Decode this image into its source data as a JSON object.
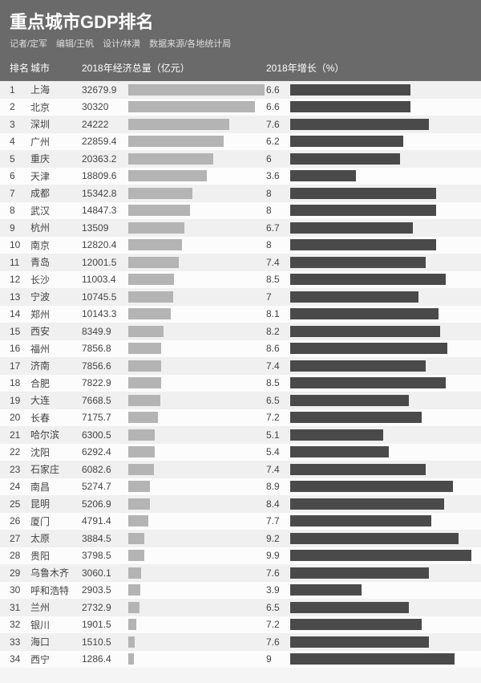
{
  "header": {
    "title": "重点城市GDP排名",
    "subtitle": "记者/定军　编辑/王帆　设计/林潢　数据来源/各地统计局"
  },
  "column_headers": {
    "rank": "排名",
    "city": "城市",
    "gdp": "2018年经济总量（亿元）",
    "growth": "2018年增长（%）"
  },
  "styling": {
    "header_bg": "#6a6a6a",
    "header_text": "#ffffff",
    "subtitle_text": "#dddddd",
    "row_even_bg": "#f0f0f0",
    "row_odd_bg": "#fcfcfc",
    "gdp_bar_color": "#b4b4b4",
    "growth_bar_color": "#4a4a4a",
    "text_color": "#444444",
    "title_fontsize": 22,
    "subtitle_fontsize": 11,
    "body_fontsize": 12,
    "row_height": 21.5
  },
  "chart": {
    "type": "table-bar",
    "gdp_max": 33000,
    "growth_max": 10,
    "columns": [
      "rank",
      "city",
      "gdp",
      "growth"
    ],
    "rows": [
      {
        "rank": 1,
        "city": "上海",
        "gdp": 32679.9,
        "growth": 6.6
      },
      {
        "rank": 2,
        "city": "北京",
        "gdp": 30320,
        "growth": 6.6
      },
      {
        "rank": 3,
        "city": "深圳",
        "gdp": 24222,
        "growth": 7.6
      },
      {
        "rank": 4,
        "city": "广州",
        "gdp": 22859.4,
        "growth": 6.2
      },
      {
        "rank": 5,
        "city": "重庆",
        "gdp": 20363.2,
        "growth": 6.0
      },
      {
        "rank": 6,
        "city": "天津",
        "gdp": 18809.6,
        "growth": 3.6
      },
      {
        "rank": 7,
        "city": "成都",
        "gdp": 15342.8,
        "growth": 8
      },
      {
        "rank": 8,
        "city": "武汉",
        "gdp": 14847.3,
        "growth": 8
      },
      {
        "rank": 9,
        "city": "杭州",
        "gdp": 13509,
        "growth": 6.7
      },
      {
        "rank": 10,
        "city": "南京",
        "gdp": 12820.4,
        "growth": 8
      },
      {
        "rank": 11,
        "city": "青岛",
        "gdp": 12001.5,
        "growth": 7.4
      },
      {
        "rank": 12,
        "city": "长沙",
        "gdp": 11003.4,
        "growth": 8.5
      },
      {
        "rank": 13,
        "city": "宁波",
        "gdp": 10745.5,
        "growth": 7.0
      },
      {
        "rank": 14,
        "city": "郑州",
        "gdp": 10143.3,
        "growth": 8.1
      },
      {
        "rank": 15,
        "city": "西安",
        "gdp": 8349.9,
        "growth": 8.2
      },
      {
        "rank": 16,
        "city": "福州",
        "gdp": 7856.8,
        "growth": 8.6
      },
      {
        "rank": 17,
        "city": "济南",
        "gdp": 7856.6,
        "growth": 7.4
      },
      {
        "rank": 18,
        "city": "合肥",
        "gdp": 7822.9,
        "growth": 8.5
      },
      {
        "rank": 19,
        "city": "大连",
        "gdp": 7668.5,
        "growth": 6.5
      },
      {
        "rank": 20,
        "city": "长春",
        "gdp": 7175.7,
        "growth": 7.2
      },
      {
        "rank": 21,
        "city": "哈尔滨",
        "gdp": 6300.5,
        "growth": 5.1
      },
      {
        "rank": 22,
        "city": "沈阳",
        "gdp": 6292.4,
        "growth": 5.4
      },
      {
        "rank": 23,
        "city": "石家庄",
        "gdp": 6082.6,
        "growth": 7.4
      },
      {
        "rank": 24,
        "city": "南昌",
        "gdp": 5274.7,
        "growth": 8.9
      },
      {
        "rank": 25,
        "city": "昆明",
        "gdp": 5206.9,
        "growth": 8.4
      },
      {
        "rank": 26,
        "city": "厦门",
        "gdp": 4791.4,
        "growth": 7.7
      },
      {
        "rank": 27,
        "city": "太原",
        "gdp": 3884.5,
        "growth": 9.2
      },
      {
        "rank": 28,
        "city": "贵阳",
        "gdp": 3798.5,
        "growth": 9.9
      },
      {
        "rank": 29,
        "city": "乌鲁木齐",
        "gdp": 3060.1,
        "growth": 7.6
      },
      {
        "rank": 30,
        "city": "呼和浩特",
        "gdp": 2903.5,
        "growth": 3.9
      },
      {
        "rank": 31,
        "city": "兰州",
        "gdp": 2732.9,
        "growth": 6.5
      },
      {
        "rank": 32,
        "city": "银川",
        "gdp": 1901.5,
        "growth": 7.2
      },
      {
        "rank": 33,
        "city": "海口",
        "gdp": 1510.5,
        "growth": 7.6
      },
      {
        "rank": 34,
        "city": "西宁",
        "gdp": 1286.4,
        "growth": 9
      }
    ]
  }
}
